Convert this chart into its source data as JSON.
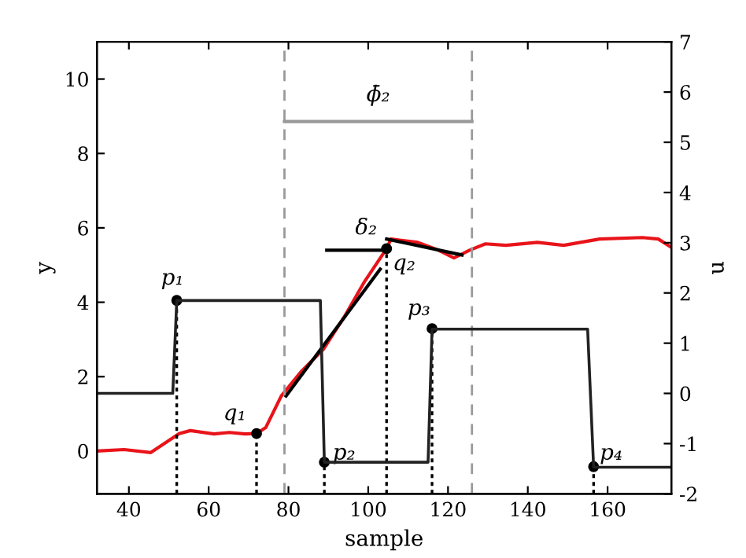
{
  "chart_data": {
    "type": "line",
    "xlabel": "sample",
    "ylabel": "y",
    "y2label": "u",
    "xlim": [
      32,
      176
    ],
    "xticks": [
      40,
      60,
      80,
      100,
      120,
      140,
      160
    ],
    "ylim": [
      -1.15,
      11
    ],
    "yticks": [
      0,
      2,
      4,
      6,
      8,
      10
    ],
    "y2lim": [
      -2,
      7
    ],
    "y2ticks": [
      -2,
      -1,
      0,
      1,
      2,
      3,
      4,
      5,
      6,
      7
    ],
    "grid": false,
    "legend": false,
    "series": [
      {
        "color": "#e8141a",
        "x": [
          32,
          38.8,
          45.5,
          52.6,
          55.4,
          61.3,
          65.2,
          69.1,
          72,
          74.3,
          78.2,
          83.3,
          88.8,
          93.9,
          99.1,
          104.6,
          105.7,
          112.4,
          117.6,
          121.5,
          125.4,
          129.4,
          134.5,
          142.4,
          149,
          158,
          168.7,
          172.7,
          175.8
        ],
        "values": [
          0,
          0.04,
          -0.04,
          0.47,
          0.55,
          0.46,
          0.5,
          0.46,
          0.47,
          0.63,
          1.48,
          2.15,
          2.74,
          3.59,
          4.56,
          5.44,
          5.7,
          5.61,
          5.4,
          5.19,
          5.4,
          5.57,
          5.53,
          5.61,
          5.53,
          5.7,
          5.74,
          5.7,
          5.49
        ]
      },
      {
        "type": "step",
        "axis": "y2",
        "color": "#222222",
        "x": [
          32,
          51,
          52,
          88,
          89,
          115,
          116,
          155,
          156.5,
          176
        ],
        "values": [
          0,
          0,
          1.85,
          1.85,
          -1.37,
          -1.37,
          1.28,
          1.28,
          -1.47,
          -1.47
        ]
      },
      {
        "type": "line",
        "color": "#000000",
        "x": [
          79.4,
          103
        ],
        "values": [
          1.48,
          4.89
        ]
      },
      {
        "type": "line",
        "color": "#000000",
        "x": [
          104.6,
          123.5
        ],
        "values": [
          5.7,
          5.27
        ]
      },
      {
        "type": "lollipop",
        "color": "#000000",
        "line_style": "dotted",
        "marker": "circle",
        "x": [
          52,
          72,
          89,
          104.6,
          116,
          156.5
        ],
        "values": [
          4.05,
          0.47,
          -0.3,
          5.44,
          3.29,
          -0.42
        ]
      },
      {
        "type": "line",
        "color": "#999999",
        "x": [
          79,
          102.5,
          126
        ],
        "values": [
          8.86,
          8.86,
          8.86
        ]
      },
      {
        "type": "line",
        "color": "#000000",
        "x": [
          89.6,
          104
        ],
        "values": [
          5.4,
          5.4
        ]
      }
    ],
    "ref_lines": [
      {
        "axis": "x",
        "value": 79,
        "color": "#999999",
        "line_style": "dashed"
      },
      {
        "axis": "x",
        "value": 126,
        "color": "#999999",
        "line_style": "dashed"
      }
    ],
    "annotations": [
      {
        "text": "p₁",
        "x": 52,
        "y": 4.05
      },
      {
        "text": "q₁",
        "x": 72,
        "y": 0.47
      },
      {
        "text": "p₂",
        "x": 89,
        "y": -0.3
      },
      {
        "text": "p₃",
        "x": 116,
        "y": 3.29
      },
      {
        "text": "p₄",
        "x": 156.5,
        "y": -0.42
      },
      {
        "text": "q₂",
        "x": 104.6,
        "y": 5.44
      },
      {
        "text": "δ₂",
        "x": 89.6,
        "y": 5.4
      },
      {
        "text": "ϕ̄₂",
        "x": 102.5,
        "y": 8.86
      }
    ]
  }
}
